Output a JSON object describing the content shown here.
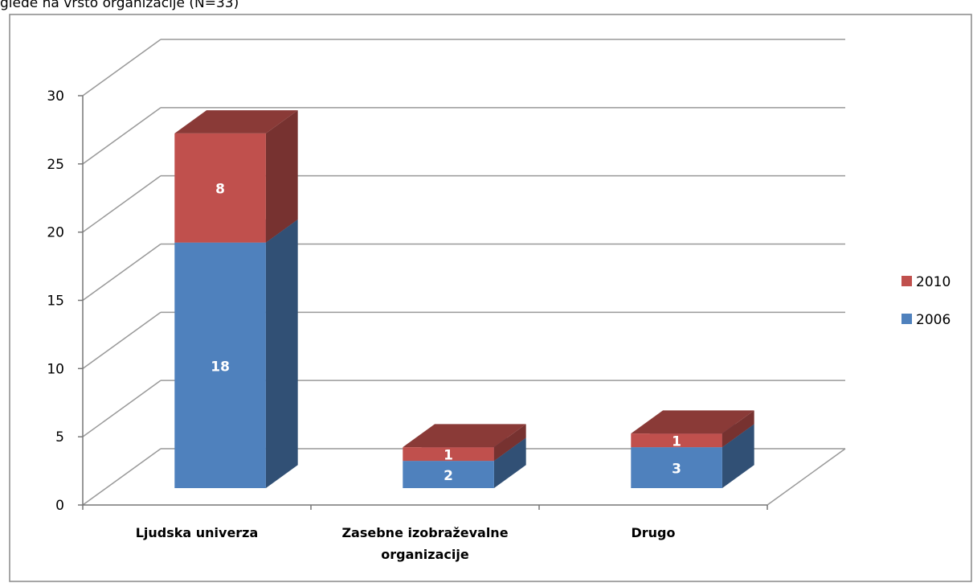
{
  "chart_data": {
    "type": "bar3d_stacked",
    "title": "glede na vrsto organizacije (N=33)",
    "categories": [
      "Ljudska univerza",
      "Zasebne izobraževalne organizacije",
      "Drugo"
    ],
    "series": [
      {
        "name": "2006",
        "color": "#4f81bd",
        "values": [
          18,
          2,
          3
        ]
      },
      {
        "name": "2010",
        "color": "#c0504d",
        "values": [
          8,
          1,
          1
        ]
      }
    ],
    "ylim": [
      0,
      30
    ],
    "yticks": [
      0,
      5,
      10,
      15,
      20,
      25,
      30
    ],
    "grid": true,
    "legend": "right"
  }
}
